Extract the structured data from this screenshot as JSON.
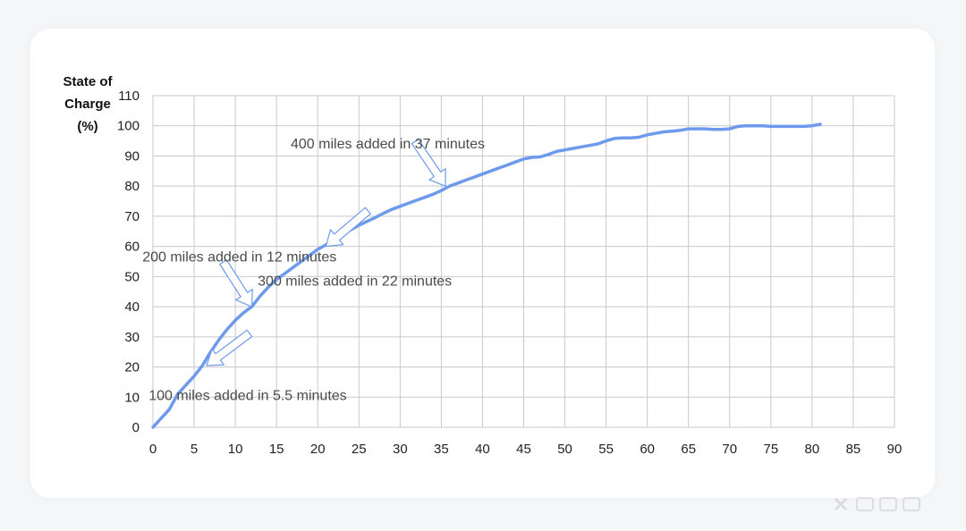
{
  "chart_data": {
    "type": "line",
    "title": "",
    "xlabel": "",
    "ylabel_lines": [
      "State of",
      "Charge",
      "(%)"
    ],
    "xlim": [
      0,
      90
    ],
    "ylim": [
      0,
      110
    ],
    "x_ticks": [
      0,
      5,
      10,
      15,
      20,
      25,
      30,
      35,
      40,
      45,
      50,
      55,
      60,
      65,
      70,
      75,
      80,
      85,
      90
    ],
    "y_ticks": [
      0,
      10,
      20,
      30,
      40,
      50,
      60,
      70,
      80,
      90,
      100,
      110
    ],
    "grid": true,
    "line_color": "#6d9aec",
    "series": [
      {
        "points": [
          [
            0,
            0
          ],
          [
            1,
            3
          ],
          [
            2,
            6
          ],
          [
            3,
            11
          ],
          [
            4,
            14
          ],
          [
            5,
            17
          ],
          [
            6,
            20.5
          ],
          [
            7,
            25
          ],
          [
            8,
            29
          ],
          [
            9,
            32.5
          ],
          [
            10,
            35.5
          ],
          [
            11,
            38
          ],
          [
            12,
            40
          ],
          [
            13,
            43.5
          ],
          [
            14,
            46.5
          ],
          [
            15,
            49
          ],
          [
            16,
            51
          ],
          [
            17,
            53
          ],
          [
            18,
            55
          ],
          [
            19,
            57
          ],
          [
            20,
            59
          ],
          [
            21,
            60.5
          ],
          [
            22,
            62.5
          ],
          [
            23,
            64
          ],
          [
            24,
            65.5
          ],
          [
            25,
            67
          ],
          [
            26,
            68.3
          ],
          [
            27,
            69.6
          ],
          [
            28,
            71
          ],
          [
            29,
            72.3
          ],
          [
            30,
            73.3
          ],
          [
            31,
            74.3
          ],
          [
            32,
            75.3
          ],
          [
            33,
            76.3
          ],
          [
            34,
            77.3
          ],
          [
            35,
            78.5
          ],
          [
            36,
            80
          ],
          [
            37,
            81
          ],
          [
            38,
            82
          ],
          [
            39,
            83
          ],
          [
            40,
            84
          ],
          [
            41,
            85
          ],
          [
            42,
            86
          ],
          [
            43,
            87
          ],
          [
            44,
            88
          ],
          [
            45,
            89
          ],
          [
            46,
            89.5
          ],
          [
            47,
            89.7
          ],
          [
            48,
            90.5
          ],
          [
            49,
            91.5
          ],
          [
            50,
            92
          ],
          [
            51,
            92.5
          ],
          [
            52,
            93
          ],
          [
            53,
            93.5
          ],
          [
            54,
            94
          ],
          [
            55,
            95
          ],
          [
            56,
            95.8
          ],
          [
            57,
            96
          ],
          [
            58,
            96
          ],
          [
            59,
            96.2
          ],
          [
            60,
            97
          ],
          [
            61,
            97.5
          ],
          [
            62,
            98
          ],
          [
            63,
            98.2
          ],
          [
            64,
            98.5
          ],
          [
            65,
            99
          ],
          [
            66,
            99
          ],
          [
            67,
            99
          ],
          [
            68,
            98.8
          ],
          [
            69,
            98.8
          ],
          [
            70,
            99
          ],
          [
            71,
            99.8
          ],
          [
            72,
            100
          ],
          [
            73,
            100
          ],
          [
            74,
            100
          ],
          [
            75,
            99.8
          ],
          [
            76,
            99.8
          ],
          [
            77,
            99.8
          ],
          [
            78,
            99.8
          ],
          [
            79,
            99.8
          ],
          [
            80,
            100
          ],
          [
            81,
            100.5
          ]
        ]
      }
    ],
    "annotations": [
      {
        "text": "400 miles added in 37 minutes",
        "target": [
          35.5,
          80
        ],
        "label_at": [
          28.5,
          92.5
        ]
      },
      {
        "text": "200 miles added in 12 minutes",
        "target": [
          12,
          40
        ],
        "label_at": [
          10.5,
          55
        ]
      },
      {
        "text": "300 miles added in 22 minutes",
        "target": [
          21,
          60
        ],
        "label_at": [
          24.5,
          47
        ]
      },
      {
        "text": "100 miles added in 5.5 minutes",
        "target": [
          6.5,
          20.5
        ],
        "label_at": [
          11.5,
          9
        ]
      }
    ]
  }
}
